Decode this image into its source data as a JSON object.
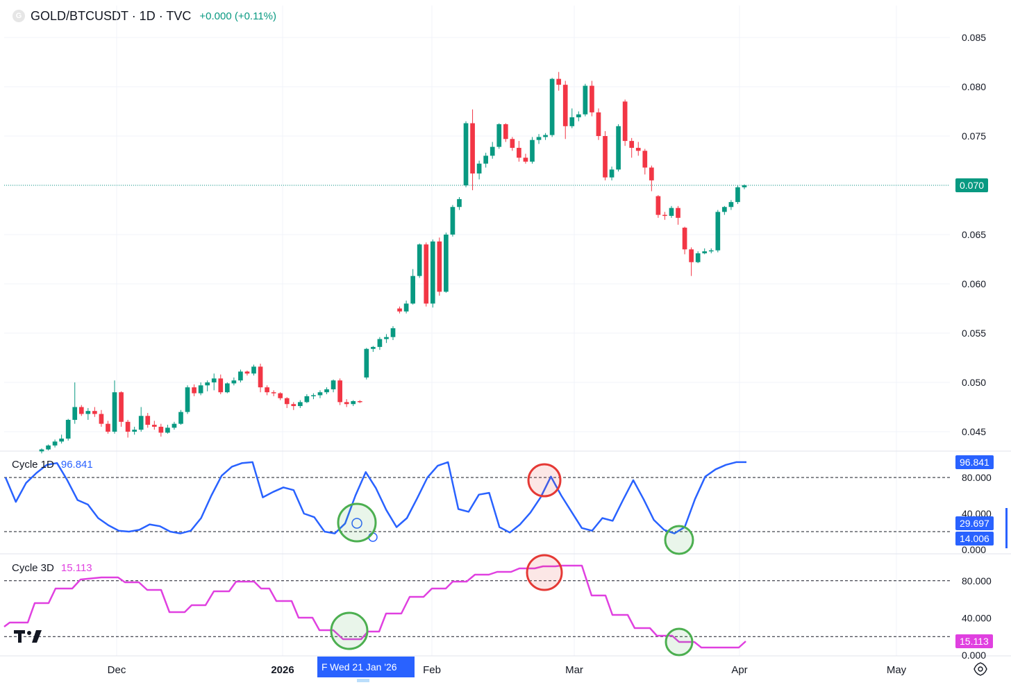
{
  "header": {
    "logo_letter": "G",
    "symbol_title": "GOLD/BTCUSDT · 1D · TVC",
    "change": "+0.000 (+0.11%)"
  },
  "colors": {
    "up": "#089981",
    "down": "#f23645",
    "cycle1d": "#2962ff",
    "cycle3d": "#e040e0",
    "highlight_green": "#4caf50",
    "highlight_red": "#e53935"
  },
  "price_axis": {
    "ticks": [
      "0.085",
      "0.080",
      "0.075",
      "0.065",
      "0.060",
      "0.055",
      "0.050",
      "0.045"
    ],
    "last_price_label": "0.070",
    "last_price": 0.07
  },
  "cycle1d": {
    "name": "Cycle 1D",
    "value": "96.841",
    "ticks": [
      "80.000",
      "40.000",
      "0.000"
    ],
    "levels": [
      80,
      20
    ],
    "badges": [
      "96.841",
      "29.697",
      "14.006"
    ]
  },
  "cycle3d": {
    "name": "Cycle 3D",
    "value": "15.113",
    "ticks": [
      "80.000",
      "40.000",
      "0.000"
    ],
    "levels": [
      80,
      20
    ],
    "badge": "15.113"
  },
  "time_axis": {
    "labels": [
      "Dec",
      "2026",
      "Feb",
      "Mar",
      "Apr",
      "May"
    ],
    "crosshair_date": "Wed 21 Jan '26",
    "crosshair_prefix": "F"
  },
  "chart_data": {
    "type": "candlestick",
    "title": "GOLD/BTCUSDT · 1D · TVC",
    "ylim": [
      0.0425,
      0.0875
    ],
    "x_labels": [
      "Dec",
      "2026",
      "Feb",
      "Mar",
      "Apr",
      "May"
    ],
    "candles": [
      [
        0.043,
        0.0433,
        0.0428,
        0.0432
      ],
      [
        0.0432,
        0.0437,
        0.0431,
        0.0436
      ],
      [
        0.0436,
        0.0442,
        0.0434,
        0.044
      ],
      [
        0.044,
        0.0447,
        0.0438,
        0.0443
      ],
      [
        0.0443,
        0.0463,
        0.0441,
        0.0462
      ],
      [
        0.0462,
        0.05,
        0.0458,
        0.0475
      ],
      [
        0.0475,
        0.0477,
        0.0466,
        0.0468
      ],
      [
        0.0468,
        0.0474,
        0.0462,
        0.0471
      ],
      [
        0.0471,
        0.0475,
        0.0465,
        0.0468
      ],
      [
        0.0468,
        0.0472,
        0.0455,
        0.0458
      ],
      [
        0.0458,
        0.0461,
        0.0448,
        0.045
      ],
      [
        0.045,
        0.0502,
        0.0448,
        0.049
      ],
      [
        0.049,
        0.0491,
        0.0455,
        0.046
      ],
      [
        0.046,
        0.0462,
        0.0444,
        0.045
      ],
      [
        0.045,
        0.0455,
        0.0447,
        0.0452
      ],
      [
        0.0452,
        0.0475,
        0.045,
        0.0466
      ],
      [
        0.0466,
        0.0469,
        0.0454,
        0.0457
      ],
      [
        0.0457,
        0.0461,
        0.0452,
        0.0455
      ],
      [
        0.0455,
        0.0458,
        0.0445,
        0.0449
      ],
      [
        0.0449,
        0.0457,
        0.0448,
        0.0454
      ],
      [
        0.0454,
        0.046,
        0.0452,
        0.0458
      ],
      [
        0.0458,
        0.0472,
        0.0457,
        0.047
      ],
      [
        0.047,
        0.0497,
        0.0468,
        0.0495
      ],
      [
        0.0495,
        0.0498,
        0.0486,
        0.0489
      ],
      [
        0.0489,
        0.05,
        0.0487,
        0.0497
      ],
      [
        0.0497,
        0.0502,
        0.0491,
        0.05
      ],
      [
        0.05,
        0.0509,
        0.0492,
        0.0504
      ],
      [
        0.0504,
        0.0508,
        0.0488,
        0.049
      ],
      [
        0.049,
        0.05,
        0.0489,
        0.0499
      ],
      [
        0.0499,
        0.0505,
        0.0497,
        0.0502
      ],
      [
        0.0502,
        0.0513,
        0.05,
        0.0511
      ],
      [
        0.0511,
        0.0512,
        0.0507,
        0.0509
      ],
      [
        0.0509,
        0.0518,
        0.0507,
        0.0516
      ],
      [
        0.0516,
        0.0519,
        0.049,
        0.0495
      ],
      [
        0.0495,
        0.0497,
        0.0487,
        0.049
      ],
      [
        0.049,
        0.0492,
        0.0486,
        0.0489
      ],
      [
        0.0489,
        0.049,
        0.0482,
        0.0484
      ],
      [
        0.0484,
        0.0485,
        0.0474,
        0.0478
      ],
      [
        0.0478,
        0.048,
        0.0472,
        0.0476
      ],
      [
        0.0476,
        0.0482,
        0.0474,
        0.048
      ],
      [
        0.048,
        0.0488,
        0.0479,
        0.0486
      ],
      [
        0.0486,
        0.0489,
        0.0483,
        0.0487
      ],
      [
        0.0487,
        0.0492,
        0.0484,
        0.049
      ],
      [
        0.049,
        0.0495,
        0.0488,
        0.0493
      ],
      [
        0.0493,
        0.0503,
        0.049,
        0.0502
      ],
      [
        0.0502,
        0.0504,
        0.0477,
        0.048
      ],
      [
        0.048,
        0.0483,
        0.0475,
        0.0478
      ],
      [
        0.0478,
        0.0482,
        0.0476,
        0.0481
      ],
      [
        0.0481,
        0.0482,
        0.0479,
        0.048
      ],
      [
        0.0505,
        0.0535,
        0.0503,
        0.0534
      ],
      [
        0.0534,
        0.0537,
        0.0531,
        0.0536
      ],
      [
        0.0536,
        0.0546,
        0.0533,
        0.0544
      ],
      [
        0.0544,
        0.0549,
        0.054,
        0.0546
      ],
      [
        0.0546,
        0.0557,
        0.0543,
        0.0555
      ],
      [
        0.0575,
        0.0577,
        0.057,
        0.0572
      ],
      [
        0.0572,
        0.0583,
        0.057,
        0.058
      ],
      [
        0.058,
        0.0615,
        0.0579,
        0.0608
      ],
      [
        0.0608,
        0.0641,
        0.0606,
        0.064
      ],
      [
        0.064,
        0.0642,
        0.0577,
        0.058
      ],
      [
        0.058,
        0.0645,
        0.0576,
        0.0643
      ],
      [
        0.0643,
        0.0647,
        0.0588,
        0.0592
      ],
      [
        0.0592,
        0.0652,
        0.0591,
        0.065
      ],
      [
        0.065,
        0.068,
        0.0648,
        0.0678
      ],
      [
        0.0678,
        0.0688,
        0.0675,
        0.0686
      ],
      [
        0.07,
        0.0765,
        0.0698,
        0.0763
      ],
      [
        0.0763,
        0.0777,
        0.0695,
        0.0712
      ],
      [
        0.0712,
        0.0725,
        0.0706,
        0.0722
      ],
      [
        0.0722,
        0.0733,
        0.0718,
        0.073
      ],
      [
        0.073,
        0.0744,
        0.0727,
        0.0739
      ],
      [
        0.0739,
        0.0763,
        0.0737,
        0.0762
      ],
      [
        0.0762,
        0.0763,
        0.0744,
        0.0747
      ],
      [
        0.0747,
        0.0749,
        0.0735,
        0.0738
      ],
      [
        0.0738,
        0.0745,
        0.0724,
        0.0728
      ],
      [
        0.0728,
        0.0732,
        0.0722,
        0.0724
      ],
      [
        0.0724,
        0.0749,
        0.0722,
        0.0746
      ],
      [
        0.0746,
        0.0752,
        0.0742,
        0.0749
      ],
      [
        0.0749,
        0.0753,
        0.0746,
        0.0751
      ],
      [
        0.0751,
        0.0809,
        0.0749,
        0.0808
      ],
      [
        0.0808,
        0.0815,
        0.0796,
        0.0802
      ],
      [
        0.0802,
        0.0806,
        0.0747,
        0.076
      ],
      [
        0.076,
        0.0778,
        0.0758,
        0.0769
      ],
      [
        0.0769,
        0.0775,
        0.0765,
        0.0772
      ],
      [
        0.0772,
        0.0803,
        0.077,
        0.0801
      ],
      [
        0.0801,
        0.0806,
        0.077,
        0.0774
      ],
      [
        0.0774,
        0.0778,
        0.0746,
        0.075
      ],
      [
        0.075,
        0.0755,
        0.0705,
        0.0708
      ],
      [
        0.0708,
        0.0719,
        0.0705,
        0.0716
      ],
      [
        0.0716,
        0.0762,
        0.0714,
        0.076
      ],
      [
        0.0785,
        0.0787,
        0.074,
        0.0745
      ],
      [
        0.0745,
        0.0748,
        0.0728,
        0.0738
      ],
      [
        0.0738,
        0.0744,
        0.073,
        0.0735
      ],
      [
        0.0735,
        0.0737,
        0.0711,
        0.0718
      ],
      [
        0.0718,
        0.072,
        0.0694,
        0.0705
      ],
      [
        0.0689,
        0.069,
        0.0667,
        0.067
      ],
      [
        0.067,
        0.0673,
        0.0665,
        0.0669
      ],
      [
        0.0669,
        0.0679,
        0.0667,
        0.0677
      ],
      [
        0.0677,
        0.0679,
        0.066,
        0.0667
      ],
      [
        0.0657,
        0.0658,
        0.063,
        0.0635
      ],
      [
        0.0635,
        0.0637,
        0.0608,
        0.0622
      ],
      [
        0.0622,
        0.0633,
        0.0621,
        0.0631
      ],
      [
        0.0631,
        0.0636,
        0.063,
        0.0633
      ],
      [
        0.0633,
        0.0636,
        0.0631,
        0.0634
      ],
      [
        0.0634,
        0.0675,
        0.0632,
        0.0673
      ],
      [
        0.0673,
        0.0679,
        0.067,
        0.0678
      ],
      [
        0.0678,
        0.0685,
        0.0675,
        0.0683
      ],
      [
        0.0683,
        0.07,
        0.0681,
        0.0698
      ],
      [
        0.0698,
        0.0701,
        0.0696,
        0.07
      ]
    ],
    "cycle_1d": [
      80,
      53,
      74,
      85,
      94,
      96,
      77,
      55,
      50,
      35,
      27,
      21,
      20,
      22,
      28,
      26,
      20,
      18,
      21,
      35,
      60,
      82,
      92,
      96,
      97,
      58,
      64,
      69,
      66,
      40,
      36,
      20,
      18,
      29,
      60,
      86,
      68,
      44,
      25,
      35,
      57,
      80,
      93,
      97,
      45,
      42,
      61,
      63,
      25,
      19,
      28,
      41,
      58,
      81,
      60,
      42,
      24,
      21,
      35,
      32,
      55,
      77,
      56,
      33,
      22,
      18,
      25,
      56,
      81,
      89,
      94,
      97,
      97
    ]
  }
}
